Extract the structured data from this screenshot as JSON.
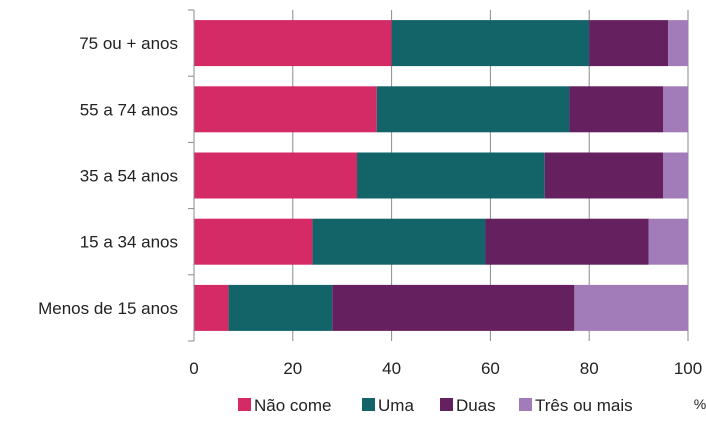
{
  "chart_data": {
    "type": "bar",
    "orientation": "horizontal",
    "stacked": true,
    "categories": [
      "75 ou + anos",
      "55 a 74 anos",
      "35 a 54 anos",
      "15 a 34 anos",
      "Menos de 15 anos"
    ],
    "series": [
      {
        "name": "Não come",
        "color": "#d42a66",
        "values": [
          40,
          37,
          33,
          24,
          7
        ]
      },
      {
        "name": "Uma",
        "color": "#136468",
        "values": [
          40,
          39,
          38,
          35,
          21
        ]
      },
      {
        "name": "Duas",
        "color": "#64205f",
        "values": [
          16,
          19,
          24,
          33,
          49
        ]
      },
      {
        "name": "Três ou mais",
        "color": "#a27cb8",
        "values": [
          4,
          5,
          5,
          8,
          23
        ]
      }
    ],
    "xlim": [
      0,
      100
    ],
    "xticks": [
      "0",
      "20",
      "40",
      "60",
      "80",
      "100"
    ],
    "unit_label": "%",
    "grid": true,
    "legend": "bottom"
  }
}
